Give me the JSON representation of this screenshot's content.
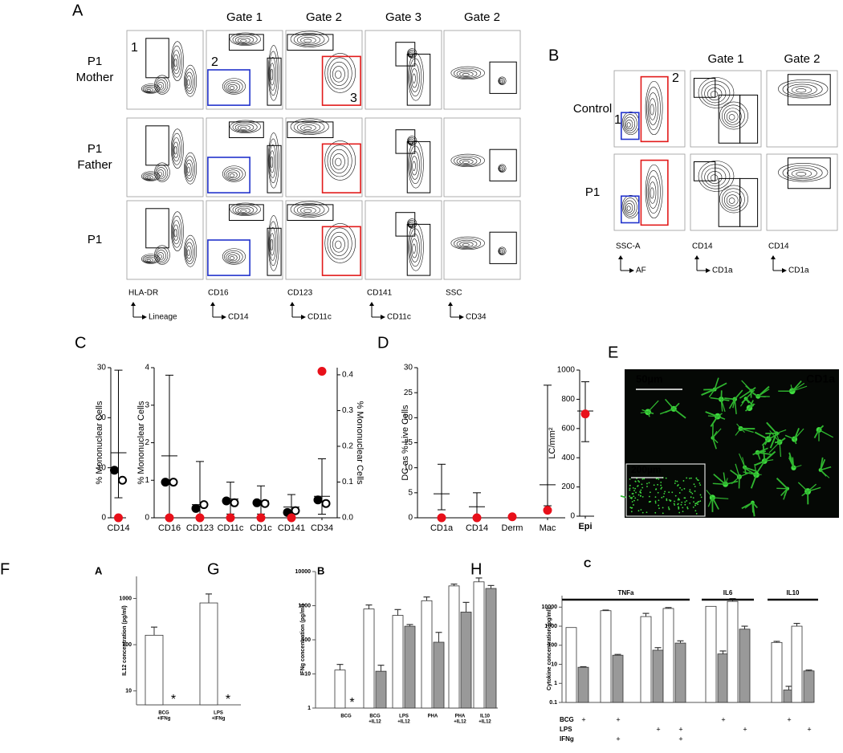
{
  "panel_a": {
    "label": "A",
    "columns": [
      "Gate 1",
      "Gate 2",
      "Gate 3",
      "Gate 2"
    ],
    "column_colors": [
      "#000000",
      "#2233cc",
      "#e21a1a",
      "#2233cc"
    ],
    "rows": [
      [
        "P1",
        "Mother"
      ],
      [
        "P1",
        "Father"
      ],
      [
        "P1"
      ]
    ],
    "axes": [
      [
        "HLA-DR",
        "Lineage"
      ],
      [
        "CD16",
        "CD14"
      ],
      [
        "CD123",
        "CD11c"
      ],
      [
        "CD141",
        "CD11c"
      ],
      [
        "SSC",
        "CD34"
      ]
    ],
    "gates": [
      "1",
      "2",
      "3"
    ]
  },
  "panel_b": {
    "label": "B",
    "columns": [
      "Gate 1",
      "Gate 2"
    ],
    "column_colors": [
      "#2233cc",
      "#e21a1a"
    ],
    "rows": [
      "Control",
      "P1"
    ],
    "axes": [
      [
        "SSC-A",
        "AF"
      ],
      [
        "CD14",
        "CD1a"
      ],
      [
        "CD14",
        "CD1a"
      ]
    ],
    "gates": [
      "1",
      "2"
    ]
  },
  "labels": [
    "C",
    "D",
    "E",
    "F",
    "G",
    "H"
  ],
  "panel_e": {
    "scale_bar": "50µm",
    "stain": "CD1a",
    "inset_scale_bar": "200µm"
  },
  "chart_data": [
    {
      "type": "dot",
      "ylabel": "% Mononuclear Cells",
      "categories": [
        "CD14"
      ],
      "ylim": [
        0,
        30
      ],
      "yticks": [
        0,
        10,
        20,
        30
      ],
      "series": [
        {
          "color": "#000000",
          "fill": "filled",
          "values": [
            9.5
          ]
        },
        {
          "color": "#000000",
          "fill": "open",
          "values": [
            7.5
          ]
        },
        {
          "color": "#e8101a",
          "fill": "filled",
          "values": [
            0
          ]
        }
      ],
      "error_bars": {
        "mean": [
          13
        ],
        "low": [
          4
        ],
        "high": [
          29.5
        ]
      }
    },
    {
      "type": "dot",
      "ylabel": "% Mononuclear Cells",
      "y2label": "% Mononuclear Cells",
      "categories": [
        "CD16",
        "CD123",
        "CD11c",
        "CD1c",
        "CD141",
        "CD34"
      ],
      "axis": [
        "y",
        "y",
        "y",
        "y",
        "y2",
        "y2"
      ],
      "ylim": [
        0,
        4
      ],
      "yticks": [
        0,
        1,
        2,
        3,
        4
      ],
      "y2lim": [
        0,
        0.42
      ],
      "y2ticks": [
        {
          "value": 0,
          "label": "0.0"
        },
        0.1,
        0.2,
        0.3,
        0.4
      ],
      "series": [
        {
          "color": "#000000",
          "fill": "filled",
          "values": [
            0.95,
            0.25,
            0.45,
            0.4,
            0.015,
            0.05
          ]
        },
        {
          "color": "#000000",
          "fill": "open",
          "values": [
            0.95,
            0.35,
            0.4,
            0.38,
            0.02,
            0.04
          ]
        },
        {
          "color": "#e8101a",
          "fill": "filled",
          "values": [
            0,
            0,
            0,
            0,
            0,
            0.41
          ]
        }
      ],
      "error_bars": {
        "mean": [
          1.65,
          0.35,
          0.5,
          0.45,
          0.03,
          0.06
        ],
        "low": [
          0.05,
          0,
          0.1,
          0.1,
          0,
          0.01
        ],
        "high": [
          3.8,
          1.5,
          0.95,
          0.85,
          0.065,
          0.165
        ]
      }
    },
    {
      "type": "dot",
      "ylabel": "DC as % Live Cells",
      "categories": [
        "CD1a",
        "CD14",
        "Derm",
        "Mac"
      ],
      "ylim": [
        0,
        30
      ],
      "yticks": [
        0,
        5,
        10,
        15,
        20,
        25,
        30
      ],
      "series": [
        {
          "color": "#e8101a",
          "fill": "filled",
          "values": [
            0,
            0,
            0.2,
            1.5
          ]
        }
      ],
      "error_bars": {
        "mean": [
          4.8,
          2.2,
          null,
          6.6
        ],
        "low": [
          1.6,
          0,
          null,
          2.4
        ],
        "high": [
          10.7,
          5,
          null,
          26.5
        ]
      }
    },
    {
      "type": "dot",
      "ylabel": "LC/mm²",
      "categories": [
        "Epi"
      ],
      "ylim": [
        0,
        1000
      ],
      "yticks": [
        0,
        200,
        400,
        600,
        800,
        1000
      ],
      "series": [
        {
          "color": "#e8101a",
          "fill": "filled",
          "values": [
            700
          ]
        }
      ],
      "error_bars": {
        "mean": [
          720
        ],
        "low": [
          510
        ],
        "high": [
          920
        ]
      }
    },
    {
      "type": "bar",
      "title": "A",
      "ylabel": "IL12 concentration (pg/ml)",
      "log": true,
      "categories": [
        [
          "BCG",
          "+IFNg"
        ],
        [
          "LPS",
          "+IFNg"
        ]
      ],
      "ylim": [
        5,
        3000
      ],
      "yticks": [
        10,
        100,
        1000
      ],
      "series": [
        {
          "color": "#ffffff",
          "values": [
            160,
            800
          ],
          "errors": [
            80,
            450
          ]
        },
        {
          "color": "#999999",
          "values": [
            null,
            null
          ],
          "errors": [
            null,
            null
          ]
        }
      ],
      "star_labels": [
        "*",
        "*"
      ]
    },
    {
      "type": "bar",
      "title": "B",
      "ylabel": "IFNg concentration (pg/ml)",
      "log": true,
      "categories": [
        [
          "BCG"
        ],
        [
          "BCG",
          "+IL12"
        ],
        [
          "LPS",
          "+IL12"
        ],
        [
          "PHA"
        ],
        [
          "PHA",
          "+IL12"
        ],
        [
          "IL10",
          "+IL12"
        ]
      ],
      "ylim": [
        1,
        10000
      ],
      "yticks": [
        1,
        10,
        100,
        1000,
        10000
      ],
      "series": [
        {
          "color": "#ffffff",
          "values": [
            13,
            800,
            520,
            1400,
            3800,
            5000
          ],
          "errors": [
            6,
            250,
            250,
            400,
            500,
            1500
          ]
        },
        {
          "color": "#999999",
          "values": [
            null,
            12,
            250,
            85,
            650,
            3200
          ],
          "errors": [
            null,
            6,
            30,
            80,
            600,
            700
          ]
        }
      ],
      "star_labels": [
        "*",
        null,
        null,
        null,
        null,
        null
      ]
    },
    {
      "type": "bar",
      "title": "C",
      "ylabel": "Cytokine concentration (pg/ml)",
      "log": true,
      "categories": [
        null,
        null,
        null,
        null,
        null,
        null,
        null,
        null
      ],
      "groups": [
        {
          "label": "TNFa",
          "count": 4
        },
        {
          "label": "IL6",
          "count": 2
        },
        {
          "label": "IL10",
          "count": 2
        }
      ],
      "ylim": [
        0.1,
        40000
      ],
      "yticks": [
        0.1,
        1,
        10,
        100,
        1000,
        10000
      ],
      "series": [
        {
          "color": "#ffffff",
          "values": [
            850,
            6500,
            3200,
            8500,
            11000,
            20000,
            140,
            1000
          ],
          "errors": [
            0,
            500,
            1500,
            1000,
            0,
            8000,
            20,
            400
          ]
        },
        {
          "color": "#999999",
          "values": [
            7,
            30,
            55,
            130,
            35,
            700,
            0.45,
            4.5
          ],
          "errors": [
            0.5,
            3,
            20,
            40,
            15,
            300,
            0.25,
            0.5
          ]
        }
      ],
      "conditions": [
        {
          "label": "BCG",
          "marks": [
            "+",
            "+",
            null,
            null,
            "+",
            null,
            "+",
            null
          ]
        },
        {
          "label": "LPS",
          "marks": [
            null,
            null,
            "+",
            "+",
            null,
            "+",
            null,
            "+"
          ]
        },
        {
          "label": "IFNg",
          "marks": [
            null,
            "+",
            null,
            "+",
            null,
            null,
            null,
            null
          ]
        }
      ]
    }
  ]
}
